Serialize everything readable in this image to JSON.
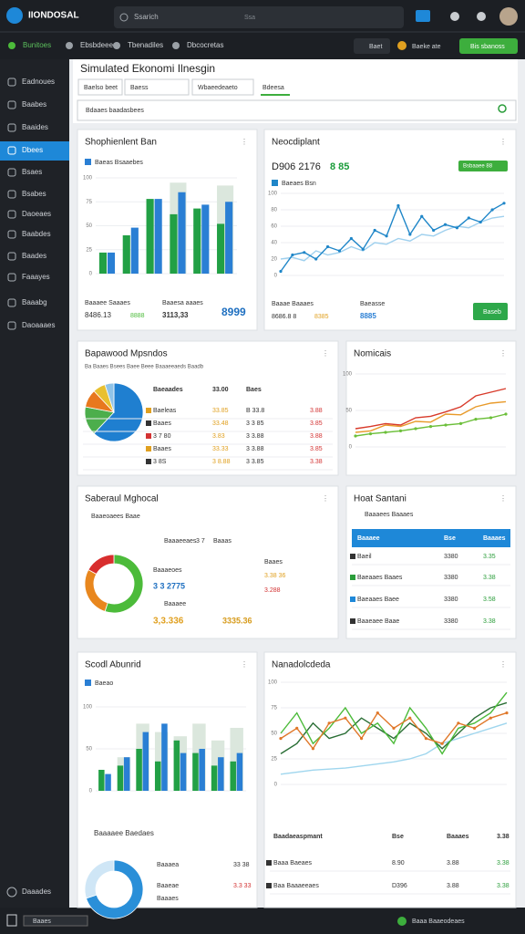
{
  "topbar": {
    "logo": "IIONDOSAL",
    "search": "Ssarich",
    "shortcut": "Ssa"
  },
  "nav": {
    "tabs": [
      "Bunitoes",
      "Ebsbdeees",
      "Tbenadiles",
      "Dbcocretas"
    ],
    "actions": [
      "Baet",
      "Baeke ate",
      "Bis sbanoss"
    ]
  },
  "sidebar": {
    "items": [
      "Eadnoues",
      "Baabes",
      "Baaides",
      "Dbees",
      "Bsaes",
      "Bsabes",
      "Daoeaes",
      "Baabdes",
      "Baades",
      "Faaayes",
      "Baaabg",
      "Daoaaaes"
    ],
    "active": 3,
    "footer": "Daaades"
  },
  "header": {
    "title": "Simulated Ekonomi Ilnesgin",
    "filters": [
      "Baelso beet",
      "Baess",
      "Wbaeedeaeto"
    ],
    "tab": "Bdeesa",
    "search": "Bdaaes baadasbees"
  },
  "cards": [
    {
      "title": "Shophienlent Ban",
      "chart": {
        "type": "bar",
        "ylim": [
          0,
          100
        ],
        "yticks": [
          0,
          25,
          50,
          75,
          100
        ],
        "grid": true,
        "series": [
          {
            "color": "#dbe7dd",
            "background": true,
            "values": [
              0,
              0,
              0,
              95,
              0,
              92
            ]
          },
          {
            "color": "#22a045",
            "values": [
              22,
              40,
              78,
              62,
              68,
              52
            ]
          },
          {
            "name": "Baeas Bsaaebes",
            "color": "#2a7fd4",
            "values": [
              22,
              48,
              78,
              85,
              72,
              75
            ]
          }
        ]
      },
      "notes": [
        "Baaaee Saaaes",
        "8486.13",
        "8888",
        "Baaesa aaaes",
        "3113,33",
        "8999"
      ]
    },
    {
      "title": "Neocdiplant",
      "chart": {
        "type": "line",
        "ylim": [
          0,
          100
        ],
        "yticks": [
          0,
          20,
          40,
          60,
          80,
          100
        ],
        "grid": true,
        "series": [
          {
            "color": "#9fd0ee",
            "values": [
              20,
              22,
              18,
              30,
              25,
              28,
              35,
              30,
              40,
              38,
              45,
              42,
              50,
              48,
              55,
              60,
              58,
              65,
              70,
              72
            ]
          },
          {
            "name": "Baeaes Bsn",
            "color": "#1f86c8",
            "values": [
              5,
              25,
              28,
              20,
              35,
              30,
              45,
              32,
              55,
              48,
              85,
              50,
              72,
              55,
              62,
              58,
              70,
              65,
              80,
              88
            ]
          }
        ]
      },
      "notes": [
        "D906 2176",
        "8 85",
        "Bsbaaee 88",
        "Baaae Baaaes",
        "8686.8 8",
        "8385",
        "Baeasse",
        "8885",
        "Baseb"
      ]
    },
    {
      "title": "Bapawood Mpsndos",
      "chart": {
        "type": "pie",
        "values": [
          62,
          16,
          10,
          7,
          5
        ],
        "colors": [
          "#1f7fd0",
          "#4cae4c",
          "#e8781e",
          "#e8c030",
          "#8fc3e8"
        ]
      },
      "notes": [
        "Ba Baaes Bsees Baee Beee Baaaeeaeds Baadb"
      ],
      "table": {
        "header": [
          "Baeaades",
          "33.00",
          "Baes"
        ],
        "rows": [
          [
            "Baeleas",
            "33.85",
            "B 33.8",
            "3.88"
          ],
          [
            "Baaes",
            "33.48",
            "3 3 85",
            "3.85"
          ],
          [
            "3 7 80",
            "3.83",
            "3 3.88",
            "3.88"
          ],
          [
            "Baaes",
            "33.33",
            "3 3.88",
            "3.85"
          ],
          [
            "3 8S",
            "3 8.88",
            "3 3.85",
            "3.38"
          ]
        ],
        "colors": [
          "#333333",
          "#e0a020",
          "#333333",
          "#d33333"
        ]
      }
    },
    {
      "title": "Nomicais",
      "chart": {
        "type": "line",
        "ylim": [
          0,
          100
        ],
        "yticks": [
          0,
          50,
          100
        ],
        "grid": true,
        "series": [
          {
            "color": "#e89a2a",
            "values": [
              20,
              22,
              30,
              28,
              35,
              34,
              45,
              44,
              55,
              60,
              62
            ]
          },
          {
            "color": "#d83a2a",
            "values": [
              25,
              28,
              32,
              30,
              40,
              42,
              48,
              55,
              70,
              75,
              80
            ]
          },
          {
            "color": "#6cbf3a",
            "values": [
              15,
              18,
              20,
              22,
              25,
              28,
              30,
              32,
              38,
              40,
              45
            ]
          }
        ]
      }
    },
    {
      "title": "Saberaul Mghocal",
      "chart": {
        "type": "pie",
        "values": [
          55,
          28,
          17
        ],
        "colors": [
          "#4cbb3a",
          "#e8871e",
          "#d82e2e"
        ],
        "donut": true
      },
      "notes": [
        "Baaeoaees Baae",
        "Baaaeeaes",
        "3 7",
        "Baaas",
        "Baaaeoes",
        "3 3 2775",
        "Baaaee",
        "3,3.336",
        "3335.36",
        "Baaes",
        "3.38 36",
        "3.288"
      ]
    },
    {
      "title": "Hoat Santani",
      "notes": [
        "Baaaees Baaaes"
      ],
      "table": {
        "header": [
          "Baaaee",
          "Bse",
          "Baaaes"
        ],
        "rows": [
          [
            "Baeil",
            "3380",
            "3.35"
          ],
          [
            "Baeaaes Baaes",
            "3380",
            "3.38"
          ],
          [
            "Baeaaes Baee",
            "3380",
            "3.58"
          ],
          [
            "Baaeaee Baae",
            "3380",
            "3.38"
          ]
        ],
        "colors": [
          "#333333",
          "#333333",
          "#2a9d3a"
        ]
      }
    },
    {
      "title": "Scodl Abunrid",
      "chart": {
        "type": "bar",
        "ylim": [
          0,
          100
        ],
        "yticks": [
          0,
          50,
          100
        ],
        "grid": true,
        "series": [
          {
            "color": "#dbe7dd",
            "background": true,
            "values": [
              0,
              40,
              80,
              70,
              65,
              80,
              60,
              75
            ]
          },
          {
            "color": "#22a045",
            "values": [
              25,
              30,
              50,
              35,
              60,
              45,
              30,
              35
            ]
          },
          {
            "name": "Baeao",
            "color": "#2a7fd4",
            "values": [
              20,
              40,
              70,
              80,
              45,
              50,
              40,
              45
            ]
          }
        ]
      },
      "chart2": {
        "type": "pie",
        "values": [
          70,
          30
        ],
        "colors": [
          "#2a8fd8",
          "#cfe6f6"
        ],
        "donut": true
      },
      "notes": [
        "Baaaaee Baedaes",
        "Baaaea",
        "33 38",
        "Baaeae",
        "3.3 33",
        "Baaaes"
      ]
    },
    {
      "title": "Nanadolcdeda",
      "chart": {
        "type": "line",
        "ylim": [
          0,
          100
        ],
        "yticks": [
          0,
          25,
          50,
          75,
          100
        ],
        "grid": true,
        "series": [
          {
            "color": "#9fd6ee",
            "values": [
              10,
              12,
              14,
              15,
              16,
              18,
              20,
              22,
              25,
              30,
              40,
              45,
              50,
              55,
              60
            ]
          },
          {
            "color": "#2a6e35",
            "values": [
              30,
              40,
              60,
              45,
              50,
              65,
              55,
              45,
              60,
              50,
              35,
              50,
              65,
              75,
              80
            ]
          },
          {
            "color": "#4cbb3a",
            "values": [
              50,
              70,
              40,
              55,
              75,
              50,
              60,
              40,
              75,
              55,
              30,
              55,
              60,
              70,
              90
            ]
          },
          {
            "color": "#e0782a",
            "values": [
              45,
              55,
              35,
              60,
              65,
              45,
              70,
              55,
              65,
              45,
              40,
              60,
              55,
              65,
              70
            ]
          }
        ]
      },
      "table": {
        "header": [
          "Baadaeaspmant",
          "Bse",
          "Baaaes",
          "3.38"
        ],
        "rows": [
          [
            "Baaa Baeaes",
            "8.90",
            "3.88",
            "3.38"
          ],
          [
            "Baa Baaaeeaes",
            "D396",
            "3.88",
            "3.38"
          ]
        ],
        "colors": [
          "#333333",
          "#333333",
          "#333333",
          "#2a9d3a"
        ]
      }
    }
  ],
  "statusbar": {
    "left": "Baaes",
    "right": "Baaa Baaeodeaes"
  }
}
